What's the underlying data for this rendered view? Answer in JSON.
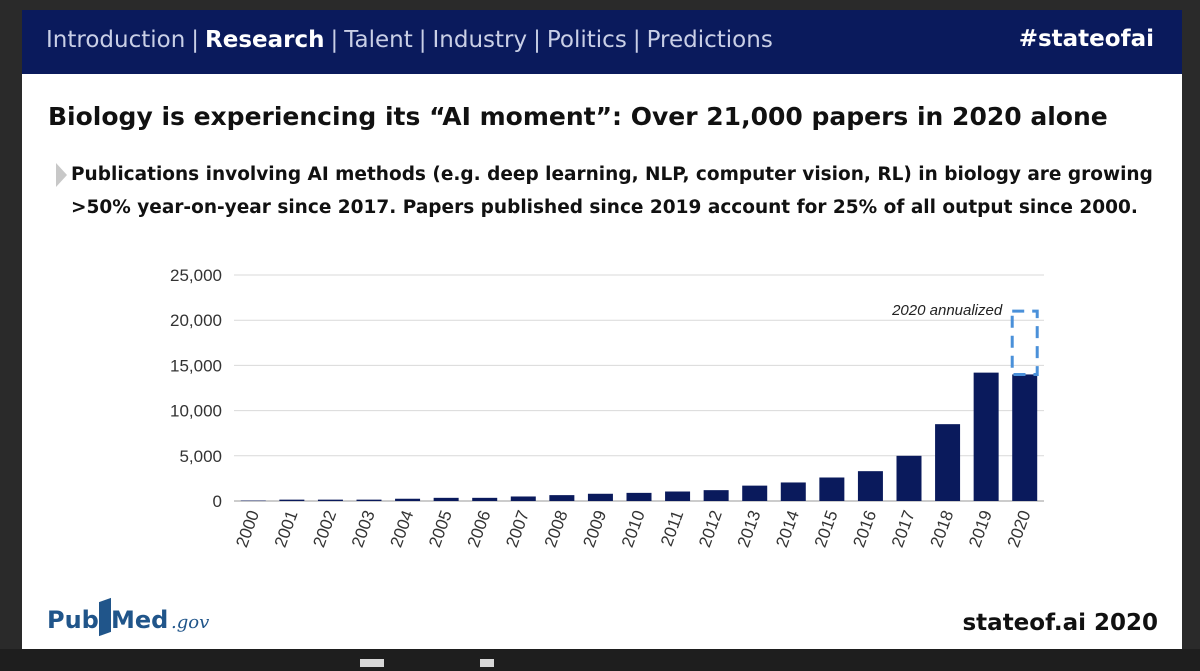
{
  "nav": {
    "items": [
      {
        "label": "Introduction",
        "active": false
      },
      {
        "label": "Research",
        "active": true
      },
      {
        "label": "Talent",
        "active": false
      },
      {
        "label": "Industry",
        "active": false
      },
      {
        "label": "Politics",
        "active": false
      },
      {
        "label": "Predictions",
        "active": false
      }
    ],
    "separator": "|",
    "hashtag": "#stateofai"
  },
  "title": "Biology is experiencing its “AI moment”: Over 21,000 papers in 2020 alone",
  "bullet": "Publications involving AI methods (e.g. deep learning, NLP, computer vision, RL) in biology are growing >50% year-on-year since 2017. Papers published since 2019 account for 25% of all output since 2000.",
  "footer": {
    "logo": {
      "part1": "Pub",
      "part2": "Med",
      "part3": ".gov"
    },
    "source": "stateof.ai 2020"
  },
  "colors": {
    "nav_bg": "#0a1a5c",
    "bar": "#0a1a5c",
    "annualized": "#4a90d9"
  },
  "chart_data": {
    "type": "bar",
    "categories": [
      "2000",
      "2001",
      "2002",
      "2003",
      "2004",
      "2005",
      "2006",
      "2007",
      "2008",
      "2009",
      "2010",
      "2011",
      "2012",
      "2013",
      "2014",
      "2015",
      "2016",
      "2017",
      "2018",
      "2019",
      "2020"
    ],
    "values": [
      50,
      150,
      150,
      150,
      250,
      350,
      350,
      500,
      650,
      800,
      900,
      1050,
      1200,
      1700,
      2050,
      2600,
      3300,
      5000,
      8500,
      14200,
      14000
    ],
    "annualized": {
      "category": "2020",
      "value": 21000,
      "label": "2020 annualized"
    },
    "yticks": [
      "0",
      "5,000",
      "10,000",
      "15,000",
      "20,000",
      "25,000"
    ],
    "ylim": [
      0,
      25000
    ],
    "grid": true,
    "title": "",
    "xlabel": "",
    "ylabel": ""
  }
}
